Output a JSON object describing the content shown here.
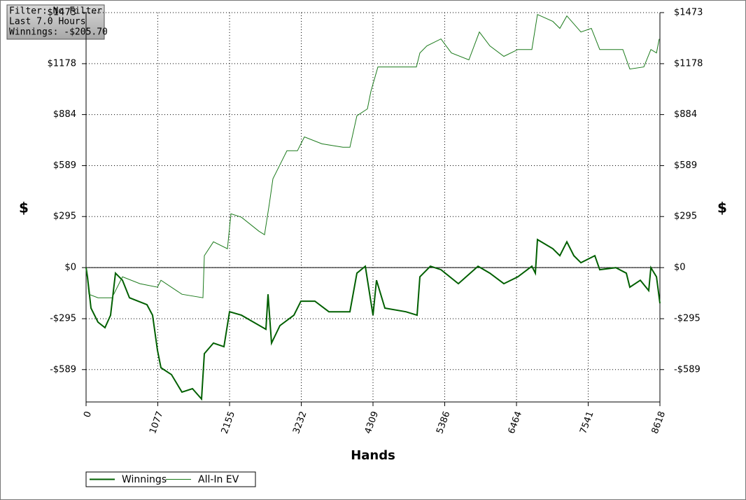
{
  "chart_data": {
    "type": "line",
    "info": [
      "Filter: No Filter",
      "Last 7.0 Hours",
      "Winnings: -$205.70"
    ],
    "xlabel": "Hands",
    "ylabel": "$",
    "y2label": "$",
    "xlim": [
      0,
      8618
    ],
    "xticks": [
      0,
      1077,
      2155,
      3232,
      4309,
      5386,
      6464,
      7541,
      8618
    ],
    "ylim": [
      -776,
      1473
    ],
    "yticks": [
      {
        "value": -589,
        "label": "-$589"
      },
      {
        "value": -295,
        "label": "-$295"
      },
      {
        "value": 0,
        "label": "$0"
      },
      {
        "value": 295,
        "label": "$295"
      },
      {
        "value": 589,
        "label": "$589"
      },
      {
        "value": 884,
        "label": "$884"
      },
      {
        "value": 1178,
        "label": "$1178"
      },
      {
        "value": 1473,
        "label": "$1473"
      }
    ],
    "grid": true,
    "legend": "bottom-left",
    "series": [
      {
        "name": "Winnings",
        "color": "#005f00",
        "x": [
          0,
          21,
          74,
          179,
          284,
          368,
          441,
          547,
          652,
          914,
          998,
          1072,
          1125,
          1282,
          1440,
          1598,
          1734,
          1776,
          1913,
          2070,
          2155,
          2333,
          2701,
          2733,
          2785,
          2911,
          3121,
          3227,
          3437,
          3647,
          3962,
          4067,
          4193,
          4309,
          4362,
          4488,
          4803,
          4971,
          5013,
          5171,
          5329,
          5591,
          5886,
          6064,
          6274,
          6485,
          6695,
          6747,
          6779,
          7010,
          7115,
          7220,
          7325,
          7431,
          7641,
          7714,
          7956,
          8114,
          8166,
          8324,
          8450,
          8482,
          8566,
          8618
        ],
        "values": [
          0,
          -53,
          -234,
          -315,
          -347,
          -275,
          -32,
          -73,
          -174,
          -214,
          -275,
          -477,
          -578,
          -618,
          -719,
          -699,
          -759,
          -497,
          -436,
          -457,
          -255,
          -275,
          -356,
          -154,
          -436,
          -335,
          -275,
          -194,
          -194,
          -255,
          -255,
          -32,
          8,
          -275,
          -73,
          -234,
          -255,
          -275,
          -53,
          8,
          -12,
          -93,
          8,
          -32,
          -93,
          -53,
          8,
          -32,
          162,
          109,
          69,
          149,
          69,
          28,
          69,
          -12,
          0,
          -32,
          -113,
          -73,
          -133,
          0,
          -53,
          -206
        ]
      },
      {
        "name": "All-In EV",
        "color": "#1b7a1b",
        "x": [
          0,
          42,
          179,
          389,
          547,
          809,
          1072,
          1125,
          1440,
          1755,
          1776,
          1913,
          2123,
          2176,
          2333,
          2596,
          2680,
          2754,
          2806,
          2911,
          3016,
          3174,
          3279,
          3542,
          3857,
          3962,
          4067,
          4225,
          4277,
          4383,
          4698,
          4961,
          5013,
          5118,
          5329,
          5486,
          5749,
          5907,
          6064,
          6274,
          6485,
          6695,
          6779,
          7010,
          7115,
          7220,
          7431,
          7588,
          7714,
          8061,
          8166,
          8376,
          8482,
          8566,
          8608
        ],
        "values": [
          0,
          -154,
          -174,
          -174,
          -53,
          -93,
          -113,
          -73,
          -154,
          -174,
          69,
          149,
          109,
          311,
          291,
          210,
          190,
          372,
          513,
          594,
          675,
          675,
          755,
          715,
          695,
          695,
          877,
          917,
          1018,
          1159,
          1159,
          1159,
          1240,
          1281,
          1321,
          1240,
          1200,
          1361,
          1281,
          1220,
          1260,
          1260,
          1462,
          1422,
          1382,
          1454,
          1361,
          1382,
          1260,
          1260,
          1147,
          1159,
          1260,
          1240,
          1321
        ]
      }
    ]
  }
}
